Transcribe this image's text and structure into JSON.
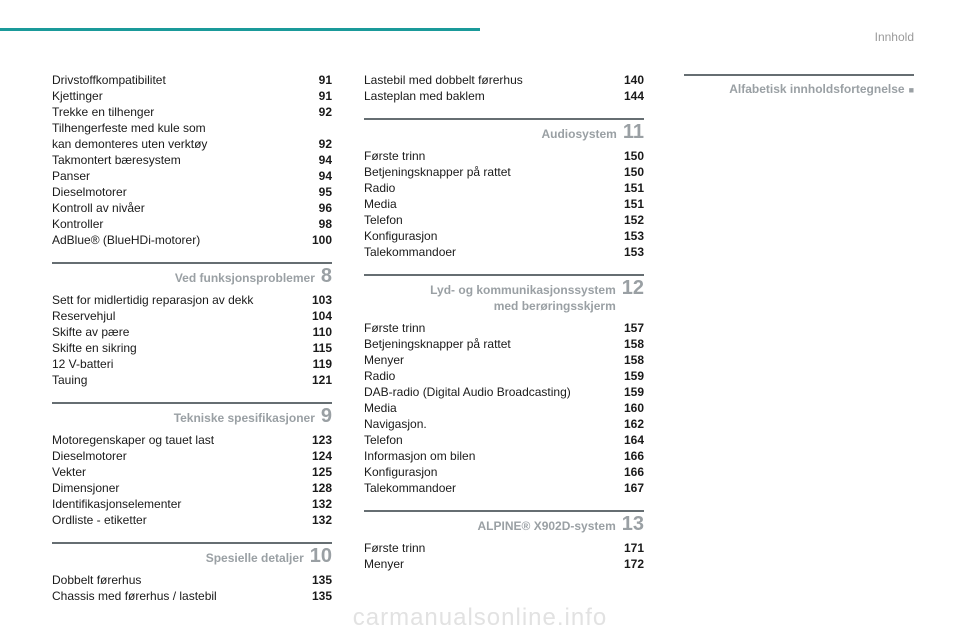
{
  "header": "Innhold",
  "rightbox": {
    "title": "Alfabetisk innholdsfortegnelse"
  },
  "watermark": "carmanualsonline.info",
  "colA": {
    "block1": [
      {
        "label": "Drivstoffkompatibilitet",
        "pg": "91"
      },
      {
        "label": "Kjettinger",
        "pg": "91"
      },
      {
        "label": "Trekke en tilhenger",
        "pg": "92"
      },
      {
        "label": "Tilhengerfeste med kule som",
        "pg": ""
      },
      {
        "label": "kan demonteres uten verktøy",
        "pg": "92"
      },
      {
        "label": "Takmontert bæresystem",
        "pg": "94"
      },
      {
        "label": "Panser",
        "pg": "94"
      },
      {
        "label": "Dieselmotorer",
        "pg": "95"
      },
      {
        "label": "Kontroll av nivåer",
        "pg": "96"
      },
      {
        "label": "Kontroller",
        "pg": "98"
      },
      {
        "label": "AdBlue® (BlueHDi-motorer)",
        "pg": "100"
      }
    ],
    "sec8": {
      "title": "Ved funksjonsproblemer",
      "num": "8"
    },
    "block2": [
      {
        "label": "Sett for midlertidig reparasjon av dekk",
        "pg": "103"
      },
      {
        "label": "Reservehjul",
        "pg": "104"
      },
      {
        "label": "Skifte av pære",
        "pg": "110"
      },
      {
        "label": "Skifte en sikring",
        "pg": "115"
      },
      {
        "label": "12 V-batteri",
        "pg": "119"
      },
      {
        "label": "Tauing",
        "pg": "121"
      }
    ],
    "sec9": {
      "title": "Tekniske spesifikasjoner",
      "num": "9"
    },
    "block3": [
      {
        "label": "Motoregenskaper og tauet last",
        "pg": "123"
      },
      {
        "label": "Dieselmotorer",
        "pg": "124"
      },
      {
        "label": "Vekter",
        "pg": "125"
      },
      {
        "label": "Dimensjoner",
        "pg": "128"
      },
      {
        "label": "Identifikasjonselementer",
        "pg": "132"
      },
      {
        "label": "Ordliste - etiketter",
        "pg": "132"
      }
    ],
    "sec10": {
      "title": "Spesielle detaljer",
      "num": "10"
    },
    "block4": [
      {
        "label": "Dobbelt førerhus",
        "pg": "135"
      },
      {
        "label": "Chassis med førerhus / lastebil",
        "pg": "135"
      }
    ]
  },
  "colB": {
    "block1": [
      {
        "label": "Lastebil med dobbelt førerhus",
        "pg": "140"
      },
      {
        "label": "Lasteplan med baklem",
        "pg": "144"
      }
    ],
    "sec11": {
      "title": "Audiosystem",
      "num": "11"
    },
    "block2": [
      {
        "label": "Første trinn",
        "pg": "150"
      },
      {
        "label": "Betjeningsknapper på rattet",
        "pg": "150"
      },
      {
        "label": "Radio",
        "pg": "151"
      },
      {
        "label": "Media",
        "pg": "151"
      },
      {
        "label": "Telefon",
        "pg": "152"
      },
      {
        "label": "Konfigurasjon",
        "pg": "153"
      },
      {
        "label": "Talekommandoer",
        "pg": "153"
      }
    ],
    "sec12": {
      "title1": "Lyd- og kommunikasjonssystem",
      "title2": "med berøringsskjerm",
      "num": "12"
    },
    "block3": [
      {
        "label": "Første trinn",
        "pg": "157"
      },
      {
        "label": "Betjeningsknapper på rattet",
        "pg": "158"
      },
      {
        "label": "Menyer",
        "pg": "158"
      },
      {
        "label": "Radio",
        "pg": "159"
      },
      {
        "label": "DAB-radio (Digital Audio Broadcasting)",
        "pg": "159"
      },
      {
        "label": "Media",
        "pg": "160"
      },
      {
        "label": "Navigasjon.",
        "pg": "162"
      },
      {
        "label": "Telefon",
        "pg": "164"
      },
      {
        "label": "Informasjon om bilen",
        "pg": "166"
      },
      {
        "label": "Konfigurasjon",
        "pg": "166"
      },
      {
        "label": "Talekommandoer",
        "pg": "167"
      }
    ],
    "sec13": {
      "title": "ALPINE® X902D-system",
      "num": "13"
    },
    "block4": [
      {
        "label": "Første trinn",
        "pg": "171"
      },
      {
        "label": "Menyer",
        "pg": "172"
      }
    ]
  }
}
